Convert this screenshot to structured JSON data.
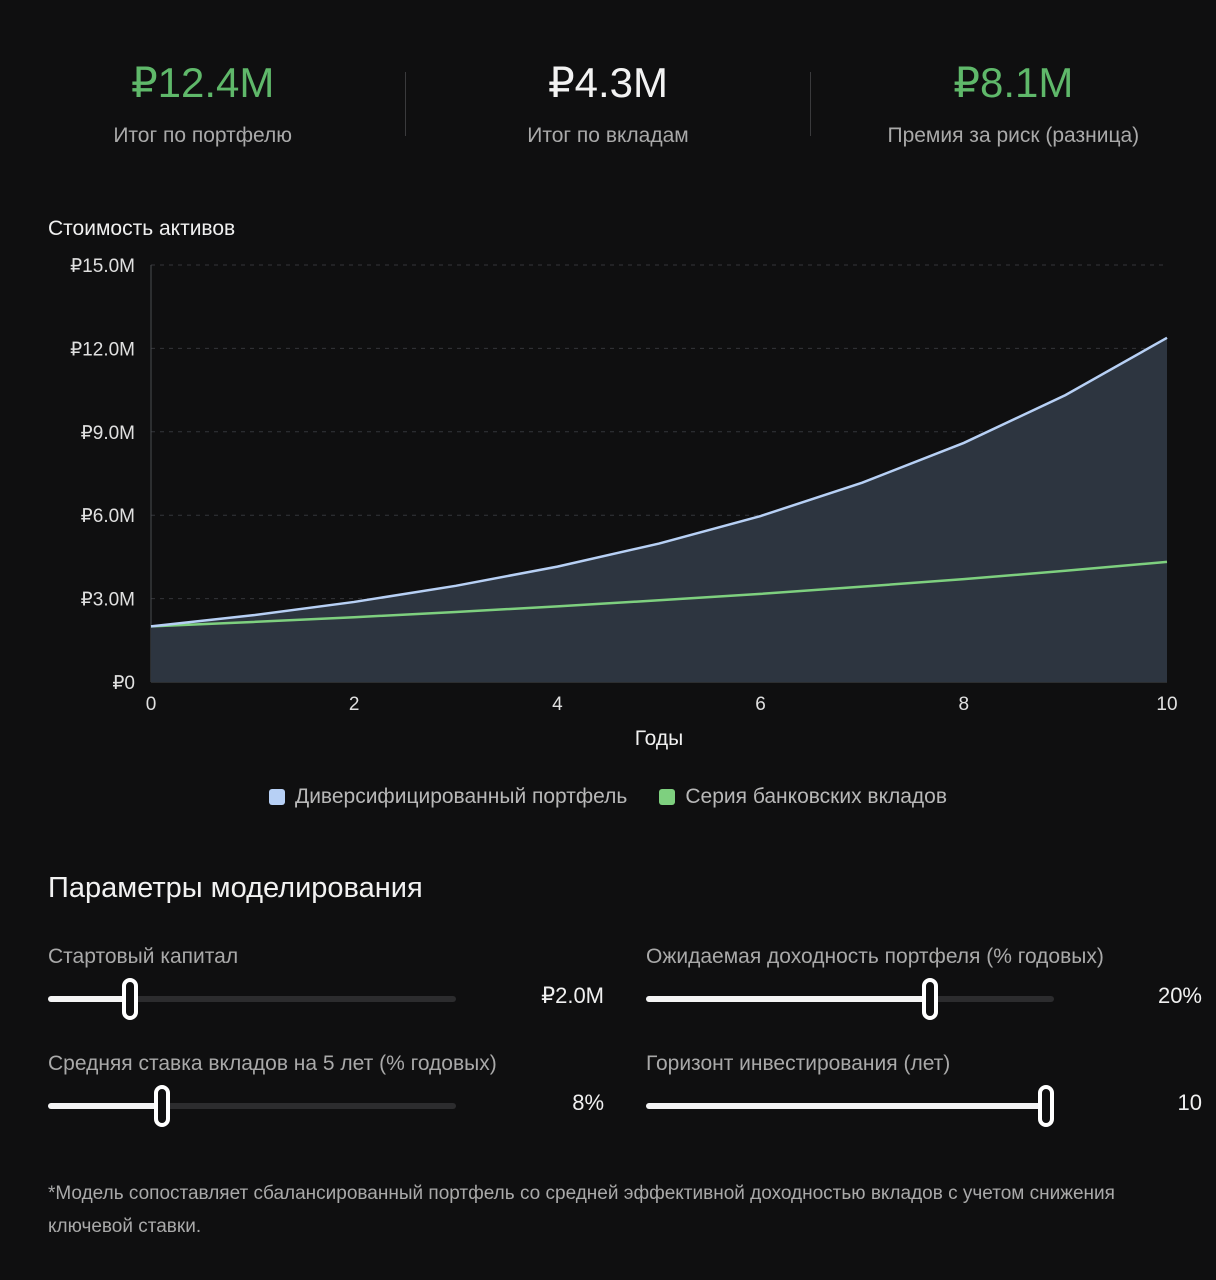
{
  "stats": [
    {
      "value": "₽12.4M",
      "label": "Итог по портфелю",
      "color": "#5fb86a"
    },
    {
      "value": "₽4.3M",
      "label": "Итог по вкладам",
      "color": "#f2f2f2"
    },
    {
      "value": "₽8.1M",
      "label": "Премия за риск (разница)",
      "color": "#5fb86a"
    }
  ],
  "chart": {
    "title": "Стоимость активов"
  },
  "chart_data": {
    "type": "area",
    "title": "Стоимость активов",
    "xlabel": "Годы",
    "ylabel": "",
    "x": [
      0,
      1,
      2,
      3,
      4,
      5,
      6,
      7,
      8,
      9,
      10
    ],
    "x_ticks": [
      "0",
      "2",
      "4",
      "6",
      "8",
      "10"
    ],
    "y_ticks": [
      "₽0",
      "₽3.0M",
      "₽6.0M",
      "₽9.0M",
      "₽12.0M",
      "₽15.0M"
    ],
    "xlim": [
      0,
      10
    ],
    "ylim": [
      0,
      15
    ],
    "y_unit": "млн ₽",
    "grid": true,
    "legend_position": "bottom",
    "series": [
      {
        "name": "Диверсифицированный портфель",
        "color": "#b7d0f5",
        "fill": "#2d3540",
        "values": [
          2.0,
          2.4,
          2.88,
          3.46,
          4.15,
          4.98,
          5.97,
          7.17,
          8.6,
          10.32,
          12.38
        ]
      },
      {
        "name": "Серия банковских вкладов",
        "color": "#7ed07f",
        "values": [
          2.0,
          2.16,
          2.33,
          2.52,
          2.72,
          2.94,
          3.17,
          3.43,
          3.7,
          4.0,
          4.32
        ]
      }
    ]
  },
  "legend": {
    "portfolio": "Диверсифицированный портфель",
    "deposits": "Серия банковских вкладов"
  },
  "params": {
    "title": "Параметры моделирования",
    "items": [
      {
        "label": "Стартовый капитал",
        "value": "₽2.0M",
        "fraction": 0.2
      },
      {
        "label": "Ожидаемая доходность портфеля (% годовых)",
        "value": "20%",
        "fraction": 0.695
      },
      {
        "label": "Средняя ставка вкладов на 5 лет (% годовых)",
        "value": "8%",
        "fraction": 0.28
      },
      {
        "label": "Горизонт инвестирования (лет)",
        "value": "10",
        "fraction": 0.98
      }
    ]
  },
  "footnote": "*Модель сопоставляет сбалансированный портфель со средней эффективной доходностью вкладов с учетом снижения ключевой ставки."
}
